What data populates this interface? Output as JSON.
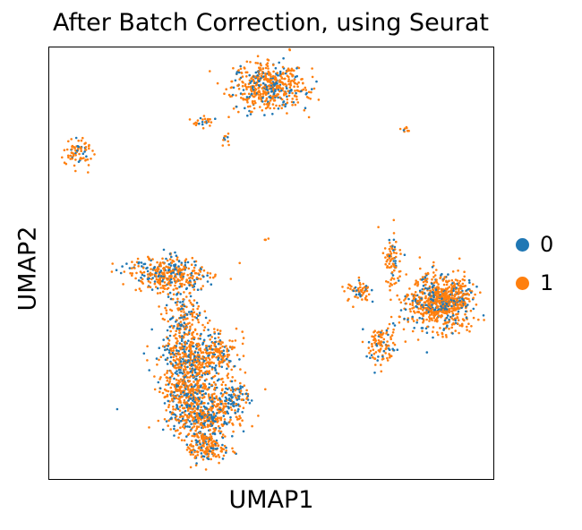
{
  "chart_data": {
    "type": "scatter",
    "title": "After Batch Correction, using Seurat",
    "xlabel": "UMAP1",
    "ylabel": "UMAP2",
    "x_ticks": [],
    "y_ticks": [],
    "grid": false,
    "legend_placement": "right",
    "xlim": [
      0,
      100
    ],
    "ylim": [
      0,
      100
    ],
    "series": [
      {
        "name": "0",
        "color": "#1f77b4"
      },
      {
        "name": "1",
        "color": "#ff7f0e"
      }
    ],
    "clusters": [
      {
        "cx": 49.5,
        "cy": 91.0,
        "sx": 4.0,
        "sy": 2.8,
        "n": 520,
        "frac0": 0.3
      },
      {
        "cx": 35.0,
        "cy": 83.0,
        "sx": 1.6,
        "sy": 0.6,
        "n": 25,
        "frac0": 0.2
      },
      {
        "cx": 39.5,
        "cy": 79.0,
        "sx": 0.5,
        "sy": 0.8,
        "n": 10,
        "frac0": 0.3
      },
      {
        "cx": 6.5,
        "cy": 75.5,
        "sx": 1.6,
        "sy": 1.5,
        "n": 75,
        "frac0": 0.25
      },
      {
        "cx": 80.0,
        "cy": 81.0,
        "sx": 0.5,
        "sy": 0.4,
        "n": 8,
        "frac0": 0.2
      },
      {
        "cx": 49.0,
        "cy": 55.5,
        "sx": 0.3,
        "sy": 0.3,
        "n": 4,
        "frac0": 0.0
      },
      {
        "cx": 88.0,
        "cy": 41.0,
        "sx": 3.6,
        "sy": 3.1,
        "n": 800,
        "frac0": 0.25
      },
      {
        "cx": 77.5,
        "cy": 51.0,
        "sx": 1.0,
        "sy": 3.5,
        "n": 80,
        "frac0": 0.2
      },
      {
        "cx": 70.0,
        "cy": 43.5,
        "sx": 1.5,
        "sy": 1.2,
        "n": 65,
        "frac0": 0.25
      },
      {
        "cx": 74.5,
        "cy": 31.0,
        "sx": 1.6,
        "sy": 2.4,
        "n": 115,
        "frac0": 0.2
      },
      {
        "cx": 27.0,
        "cy": 47.5,
        "sx": 4.2,
        "sy": 2.0,
        "n": 370,
        "frac0": 0.35
      },
      {
        "cx": 30.0,
        "cy": 38.0,
        "sx": 2.2,
        "sy": 3.5,
        "n": 170,
        "frac0": 0.35
      },
      {
        "cx": 31.0,
        "cy": 28.0,
        "sx": 3.2,
        "sy": 3.0,
        "n": 360,
        "frac0": 0.3
      },
      {
        "cx": 37.5,
        "cy": 29.0,
        "sx": 2.4,
        "sy": 2.4,
        "n": 180,
        "frac0": 0.3
      },
      {
        "cx": 31.5,
        "cy": 20.5,
        "sx": 3.0,
        "sy": 2.2,
        "n": 290,
        "frac0": 0.3
      },
      {
        "cx": 34.5,
        "cy": 14.5,
        "sx": 4.0,
        "sy": 2.2,
        "n": 380,
        "frac0": 0.35
      },
      {
        "cx": 35.5,
        "cy": 7.5,
        "sx": 2.4,
        "sy": 2.0,
        "n": 210,
        "frac0": 0.25
      },
      {
        "cx": 41.0,
        "cy": 19.0,
        "sx": 2.0,
        "sy": 2.2,
        "n": 120,
        "frac0": 0.55
      }
    ]
  }
}
